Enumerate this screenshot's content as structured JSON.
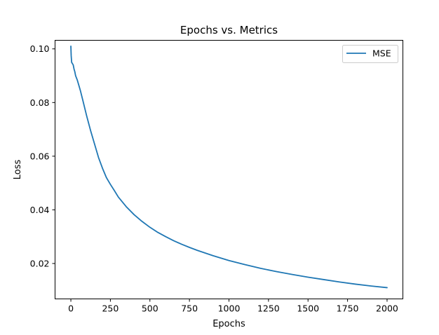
{
  "chart_data": {
    "type": "line",
    "title": "Epochs vs. Metrics",
    "xlabel": "Epochs",
    "ylabel": "Loss",
    "xlim": [
      -100,
      2100
    ],
    "ylim": [
      0.0068,
      0.1032
    ],
    "xticks": [
      0,
      250,
      500,
      750,
      1000,
      1250,
      1500,
      1750,
      2000
    ],
    "xtick_labels": [
      "0",
      "250",
      "500",
      "750",
      "1000",
      "1250",
      "1500",
      "1750",
      "2000"
    ],
    "yticks": [
      0.02,
      0.04,
      0.06,
      0.08,
      0.1
    ],
    "ytick_labels": [
      "0.02",
      "0.04",
      "0.06",
      "0.08",
      "0.10"
    ],
    "grid": false,
    "legend_position": "top-right",
    "series": [
      {
        "name": "MSE",
        "color": "#1f77b4",
        "x": [
          0,
          2,
          5,
          10,
          15,
          20,
          25,
          30,
          40,
          50,
          60,
          75,
          100,
          125,
          150,
          175,
          200,
          225,
          250,
          275,
          300,
          350,
          400,
          450,
          500,
          550,
          600,
          650,
          700,
          750,
          800,
          900,
          1000,
          1100,
          1200,
          1300,
          1400,
          1500,
          1600,
          1700,
          1800,
          1900,
          2000
        ],
        "y": [
          0.101,
          0.0975,
          0.095,
          0.0945,
          0.094,
          0.0925,
          0.0915,
          0.09,
          0.0885,
          0.0865,
          0.0845,
          0.081,
          0.075,
          0.0695,
          0.0645,
          0.0595,
          0.0555,
          0.052,
          0.0495,
          0.0472,
          0.0448,
          0.0412,
          0.0382,
          0.0357,
          0.0335,
          0.0316,
          0.03,
          0.0285,
          0.0272,
          0.026,
          0.0249,
          0.0229,
          0.0211,
          0.0196,
          0.0182,
          0.017,
          0.0159,
          0.0149,
          0.014,
          0.0131,
          0.0123,
          0.0116,
          0.011
        ]
      }
    ]
  }
}
